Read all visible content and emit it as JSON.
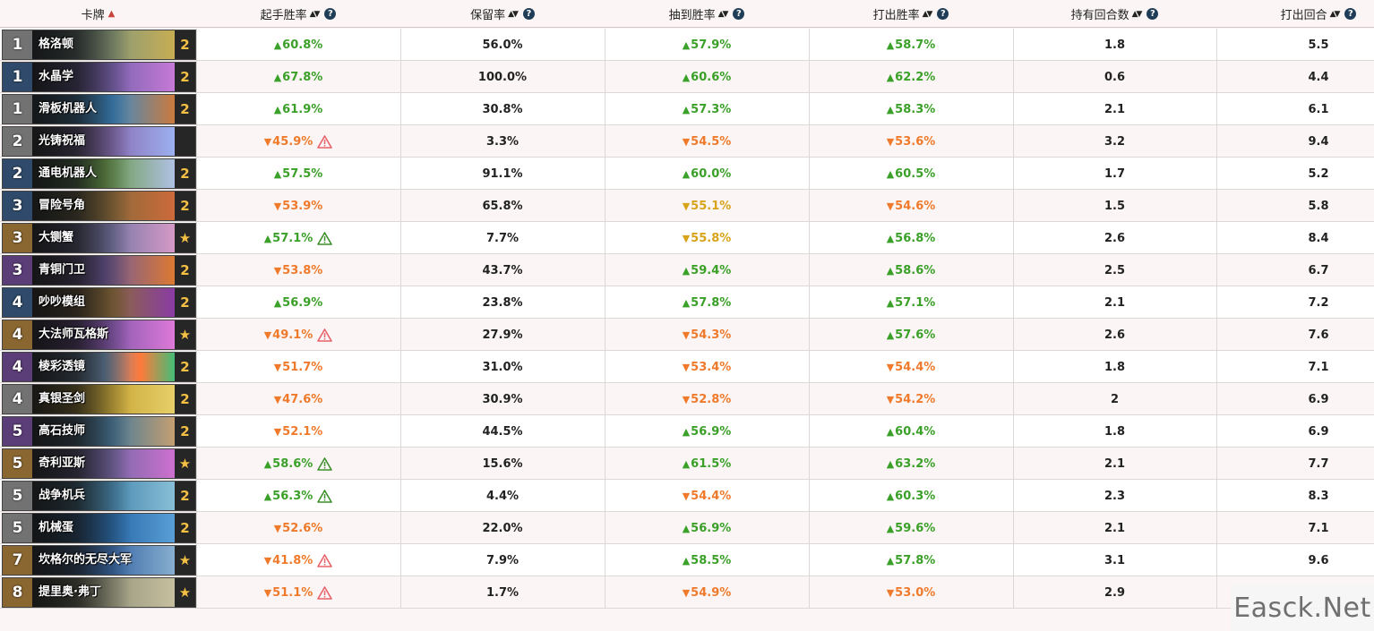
{
  "header": {
    "col_card": "卡牌",
    "col_mulligan": "起手胜率",
    "col_keep": "保留率",
    "col_drawn": "抽到胜率",
    "col_played": "打出胜率",
    "col_turns_held": "持有回合数",
    "col_turn_played": "打出回合"
  },
  "colors": {
    "up": "#3aa028",
    "down": "#ef7a2c",
    "neutral": "#d7a319",
    "warn_down": "#e8636a",
    "warn_up": "#3f8f2c"
  },
  "rows": [
    {
      "cost": "1",
      "name": "格洛顿",
      "count": "2",
      "mull": "60.8%",
      "mull_dir": "up",
      "mull_warn": "",
      "keep": "56.0%",
      "drawn": "57.9%",
      "drawn_dir": "up",
      "played": "58.7%",
      "played_dir": "up",
      "held": "1.8",
      "turn": "5.5",
      "rarity": "common",
      "art": "gloton"
    },
    {
      "cost": "1",
      "name": "水晶学",
      "count": "2",
      "mull": "67.8%",
      "mull_dir": "up",
      "mull_warn": "",
      "keep": "100.0%",
      "drawn": "60.6%",
      "drawn_dir": "up",
      "played": "62.2%",
      "played_dir": "up",
      "held": "0.6",
      "turn": "4.4",
      "rarity": "rare",
      "art": "crystal"
    },
    {
      "cost": "1",
      "name": "滑板机器人",
      "count": "2",
      "mull": "61.9%",
      "mull_dir": "up",
      "mull_warn": "",
      "keep": "30.8%",
      "drawn": "57.3%",
      "drawn_dir": "up",
      "played": "58.3%",
      "played_dir": "up",
      "held": "2.1",
      "turn": "6.1",
      "rarity": "common",
      "art": "skate"
    },
    {
      "cost": "2",
      "name": "光铸祝福",
      "count": "",
      "mull": "45.9%",
      "mull_dir": "down",
      "mull_warn": "down",
      "keep": "3.3%",
      "drawn": "54.5%",
      "drawn_dir": "down",
      "played": "53.6%",
      "played_dir": "down",
      "held": "3.2",
      "turn": "9.4",
      "rarity": "common",
      "art": "light"
    },
    {
      "cost": "2",
      "name": "通电机器人",
      "count": "2",
      "mull": "57.5%",
      "mull_dir": "up",
      "mull_warn": "",
      "keep": "91.1%",
      "drawn": "60.0%",
      "drawn_dir": "up",
      "played": "60.5%",
      "played_dir": "up",
      "held": "1.7",
      "turn": "5.2",
      "rarity": "rare",
      "art": "zap"
    },
    {
      "cost": "3",
      "name": "冒险号角",
      "count": "2",
      "mull": "53.9%",
      "mull_dir": "down",
      "mull_warn": "",
      "keep": "65.8%",
      "drawn": "55.1%",
      "drawn_dir": "neutral",
      "played": "54.6%",
      "played_dir": "down",
      "held": "1.5",
      "turn": "5.8",
      "rarity": "rare",
      "art": "horn"
    },
    {
      "cost": "3",
      "name": "大铡蟹",
      "count": "★",
      "mull": "57.1%",
      "mull_dir": "up",
      "mull_warn": "up",
      "keep": "7.7%",
      "drawn": "55.8%",
      "drawn_dir": "neutral",
      "played": "56.8%",
      "played_dir": "up",
      "held": "2.6",
      "turn": "8.4",
      "rarity": "legendary",
      "art": "crab"
    },
    {
      "cost": "3",
      "name": "青铜门卫",
      "count": "2",
      "mull": "53.8%",
      "mull_dir": "down",
      "mull_warn": "",
      "keep": "43.7%",
      "drawn": "59.4%",
      "drawn_dir": "up",
      "played": "58.6%",
      "played_dir": "up",
      "held": "2.5",
      "turn": "6.7",
      "rarity": "epic",
      "art": "bronze"
    },
    {
      "cost": "4",
      "name": "吵吵模组",
      "count": "2",
      "mull": "56.9%",
      "mull_dir": "up",
      "mull_warn": "",
      "keep": "23.8%",
      "drawn": "57.8%",
      "drawn_dir": "up",
      "played": "57.1%",
      "played_dir": "up",
      "held": "2.1",
      "turn": "7.2",
      "rarity": "rare",
      "art": "module"
    },
    {
      "cost": "4",
      "name": "大法师瓦格斯",
      "count": "★",
      "mull": "49.1%",
      "mull_dir": "down",
      "mull_warn": "down",
      "keep": "27.9%",
      "drawn": "54.3%",
      "drawn_dir": "down",
      "played": "57.6%",
      "played_dir": "up",
      "held": "2.6",
      "turn": "7.6",
      "rarity": "legendary",
      "art": "vargoth"
    },
    {
      "cost": "4",
      "name": "棱彩透镜",
      "count": "2",
      "mull": "51.7%",
      "mull_dir": "down",
      "mull_warn": "",
      "keep": "31.0%",
      "drawn": "53.4%",
      "drawn_dir": "down",
      "played": "54.4%",
      "played_dir": "down",
      "held": "1.8",
      "turn": "7.1",
      "rarity": "epic",
      "art": "prism"
    },
    {
      "cost": "4",
      "name": "真银圣剑",
      "count": "2",
      "mull": "47.6%",
      "mull_dir": "down",
      "mull_warn": "",
      "keep": "30.9%",
      "drawn": "52.8%",
      "drawn_dir": "down",
      "played": "54.2%",
      "played_dir": "down",
      "held": "2",
      "turn": "6.9",
      "rarity": "common",
      "art": "sword"
    },
    {
      "cost": "5",
      "name": "高石技师",
      "count": "2",
      "mull": "52.1%",
      "mull_dir": "down",
      "mull_warn": "",
      "keep": "44.5%",
      "drawn": "56.9%",
      "drawn_dir": "up",
      "played": "60.4%",
      "played_dir": "up",
      "held": "1.8",
      "turn": "6.9",
      "rarity": "epic",
      "art": "tech"
    },
    {
      "cost": "5",
      "name": "奇利亚斯",
      "count": "★",
      "mull": "58.6%",
      "mull_dir": "up",
      "mull_warn": "up",
      "keep": "15.6%",
      "drawn": "61.5%",
      "drawn_dir": "up",
      "played": "63.2%",
      "played_dir": "up",
      "held": "2.1",
      "turn": "7.7",
      "rarity": "legendary",
      "art": "zilliax"
    },
    {
      "cost": "5",
      "name": "战争机兵",
      "count": "2",
      "mull": "56.3%",
      "mull_dir": "up",
      "mull_warn": "up",
      "keep": "4.4%",
      "drawn": "54.4%",
      "drawn_dir": "down",
      "played": "60.3%",
      "played_dir": "up",
      "held": "2.3",
      "turn": "8.3",
      "rarity": "common",
      "art": "warmech"
    },
    {
      "cost": "5",
      "name": "机械蛋",
      "count": "2",
      "mull": "52.6%",
      "mull_dir": "down",
      "mull_warn": "",
      "keep": "22.0%",
      "drawn": "56.9%",
      "drawn_dir": "up",
      "played": "59.6%",
      "played_dir": "up",
      "held": "2.1",
      "turn": "7.1",
      "rarity": "common",
      "art": "egg"
    },
    {
      "cost": "7",
      "name": "坎格尔的无尽大军",
      "count": "★",
      "mull": "41.8%",
      "mull_dir": "down",
      "mull_warn": "down",
      "keep": "7.9%",
      "drawn": "58.5%",
      "drawn_dir": "up",
      "played": "57.8%",
      "played_dir": "up",
      "held": "3.1",
      "turn": "9.6",
      "rarity": "legendary",
      "art": "army"
    },
    {
      "cost": "8",
      "name": "提里奥·弗丁",
      "count": "★",
      "mull": "51.1%",
      "mull_dir": "down",
      "mull_warn": "down",
      "keep": "1.7%",
      "drawn": "54.9%",
      "drawn_dir": "down",
      "played": "53.0%",
      "played_dir": "down",
      "held": "2.9",
      "turn": "",
      "rarity": "legendary",
      "art": "tirion"
    }
  ],
  "watermark": "Easck.Net"
}
